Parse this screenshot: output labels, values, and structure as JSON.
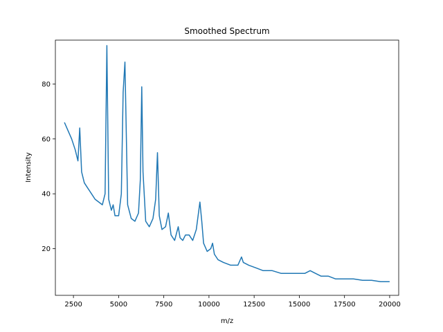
{
  "chart_data": {
    "type": "line",
    "title": "Smoothed Spectrum",
    "xlabel": "m/z",
    "ylabel": "Intensity",
    "xlim": [
      1500,
      20500
    ],
    "ylim": [
      3,
      96
    ],
    "x_ticks": [
      2500,
      5000,
      7500,
      10000,
      12500,
      15000,
      17500,
      20000
    ],
    "x_tick_labels": [
      "2500",
      "5000",
      "7500",
      "10000",
      "12500",
      "15000",
      "17500",
      "20000"
    ],
    "y_ticks": [
      20,
      40,
      60,
      80
    ],
    "y_tick_labels": [
      "20",
      "40",
      "60",
      "80"
    ],
    "grid": false,
    "series": [
      {
        "color": "#1f77b4",
        "x": [
          2000,
          2200,
          2400,
          2600,
          2750,
          2850,
          2950,
          3100,
          3300,
          3500,
          3700,
          3900,
          4100,
          4250,
          4350,
          4450,
          4600,
          4700,
          4800,
          5000,
          5150,
          5250,
          5350,
          5500,
          5700,
          5900,
          6100,
          6200,
          6280,
          6350,
          6500,
          6700,
          6900,
          7050,
          7150,
          7250,
          7400,
          7600,
          7750,
          7900,
          8100,
          8300,
          8400,
          8550,
          8700,
          8900,
          9100,
          9300,
          9500,
          9600,
          9700,
          9900,
          10100,
          10200,
          10300,
          10500,
          10800,
          11200,
          11600,
          11800,
          11900,
          12200,
          12600,
          13000,
          13500,
          14000,
          14500,
          15000,
          15300,
          15600,
          15900,
          16200,
          16600,
          17000,
          17500,
          18000,
          18500,
          19000,
          19500,
          20000
        ],
        "values": [
          66,
          63,
          60,
          56,
          52,
          64,
          48,
          44,
          42,
          40,
          38,
          37,
          36,
          40,
          94,
          38,
          34,
          36,
          32,
          32,
          40,
          77,
          88,
          36,
          31,
          30,
          33,
          45,
          79,
          48,
          30,
          28,
          31,
          38,
          55,
          32,
          27,
          28,
          33,
          25,
          23,
          28,
          24,
          23,
          25,
          25,
          23,
          27,
          37,
          30,
          22,
          19,
          20,
          22,
          18,
          16,
          15,
          14,
          14,
          17,
          15,
          14,
          13,
          12,
          12,
          11,
          11,
          11,
          11,
          12,
          11,
          10,
          10,
          9,
          9,
          9,
          8.5,
          8.5,
          8,
          8
        ]
      }
    ]
  }
}
